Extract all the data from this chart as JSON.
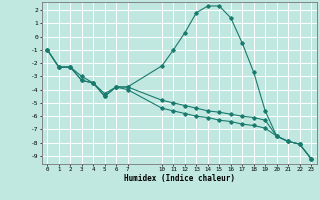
{
  "xlabel": "Humidex (Indice chaleur)",
  "bg_color": "#c0e8e0",
  "grid_color": "#ffffff",
  "line_color": "#1a7a6e",
  "xlim": [
    -0.5,
    23.5
  ],
  "ylim": [
    -9.6,
    2.6
  ],
  "xticks": [
    0,
    1,
    2,
    3,
    4,
    5,
    6,
    7,
    10,
    11,
    12,
    13,
    14,
    15,
    16,
    17,
    18,
    19,
    20,
    21,
    22,
    23
  ],
  "yticks": [
    2,
    1,
    0,
    -1,
    -2,
    -3,
    -4,
    -5,
    -6,
    -7,
    -8,
    -9
  ],
  "line1_x": [
    0,
    1,
    2,
    3,
    4,
    5,
    6,
    7,
    10,
    11,
    12,
    13,
    14,
    15,
    16,
    17,
    18,
    19,
    20,
    21,
    22,
    23
  ],
  "line1_y": [
    -1.0,
    -2.3,
    -2.3,
    -3.3,
    -3.5,
    -4.5,
    -3.8,
    -3.8,
    -2.2,
    -1.0,
    0.3,
    1.8,
    2.3,
    2.3,
    1.4,
    -0.5,
    -2.7,
    -5.6,
    -7.5,
    -7.9,
    -8.1,
    -9.2
  ],
  "line2_x": [
    0,
    1,
    2,
    3,
    4,
    5,
    6,
    7,
    10,
    11,
    12,
    13,
    14,
    15,
    16,
    17,
    18,
    19,
    20,
    21,
    22,
    23
  ],
  "line2_y": [
    -1.0,
    -2.3,
    -2.3,
    -3.3,
    -3.5,
    -4.5,
    -3.8,
    -3.8,
    -4.8,
    -5.0,
    -5.2,
    -5.4,
    -5.6,
    -5.7,
    -5.85,
    -6.0,
    -6.1,
    -6.3,
    -7.5,
    -7.9,
    -8.1,
    -9.2
  ],
  "line3_x": [
    0,
    1,
    2,
    3,
    4,
    5,
    6,
    7,
    10,
    11,
    12,
    13,
    14,
    15,
    16,
    17,
    18,
    19,
    20,
    21,
    22,
    23
  ],
  "line3_y": [
    -1.0,
    -2.3,
    -2.3,
    -3.0,
    -3.5,
    -4.3,
    -3.8,
    -4.0,
    -5.4,
    -5.6,
    -5.8,
    -6.0,
    -6.1,
    -6.3,
    -6.4,
    -6.6,
    -6.7,
    -6.9,
    -7.5,
    -7.9,
    -8.1,
    -9.2
  ]
}
